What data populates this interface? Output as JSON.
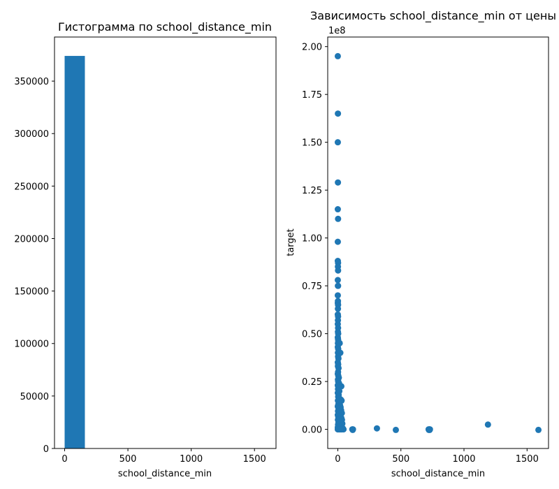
{
  "chart_data": [
    {
      "type": "bar",
      "title": "Гистограмма по school_distance_min",
      "xlabel": "school_distance_min",
      "ylabel": "",
      "xlim": [
        -80,
        1670
      ],
      "ylim": [
        0,
        392000
      ],
      "x_ticks": [
        0,
        500,
        1000,
        1500
      ],
      "y_ticks": [
        0,
        50000,
        100000,
        150000,
        200000,
        250000,
        300000,
        350000
      ],
      "bins": [
        {
          "x0": 0,
          "x1": 160,
          "count": 374000
        },
        {
          "x0": 160,
          "x1": 320,
          "count": 0
        },
        {
          "x0": 320,
          "x1": 480,
          "count": 0
        },
        {
          "x0": 480,
          "x1": 640,
          "count": 0
        },
        {
          "x0": 640,
          "x1": 800,
          "count": 0
        },
        {
          "x0": 800,
          "x1": 960,
          "count": 0
        },
        {
          "x0": 960,
          "x1": 1120,
          "count": 0
        },
        {
          "x0": 1120,
          "x1": 1280,
          "count": 0
        },
        {
          "x0": 1280,
          "x1": 1440,
          "count": 0
        },
        {
          "x0": 1440,
          "x1": 1600,
          "count": 0
        }
      ],
      "color": "#1f77b4"
    },
    {
      "type": "scatter",
      "title": "Зависимость school_distance_min от цены",
      "xlabel": "school_distance_min",
      "ylabel": "target",
      "y_offset_label": "1e8",
      "xlim": [
        -80,
        1670
      ],
      "ylim": [
        -0.1,
        2.05
      ],
      "x_ticks": [
        0,
        500,
        1000,
        1500
      ],
      "y_ticks": [
        "0.00",
        "0.25",
        "0.50",
        "0.75",
        "1.00",
        "1.25",
        "1.50",
        "1.75",
        "2.00"
      ],
      "color": "#1f77b4",
      "points": [
        [
          0,
          1.95
        ],
        [
          1,
          1.65
        ],
        [
          0,
          1.5
        ],
        [
          1,
          1.29
        ],
        [
          0,
          1.15
        ],
        [
          2,
          1.1
        ],
        [
          0,
          0.98
        ],
        [
          0,
          0.88
        ],
        [
          2,
          0.87
        ],
        [
          1,
          0.85
        ],
        [
          2,
          0.83
        ],
        [
          0,
          0.78
        ],
        [
          1,
          0.75
        ],
        [
          2,
          0.75
        ],
        [
          0,
          0.7
        ],
        [
          1,
          0.67
        ],
        [
          0,
          0.66
        ],
        [
          2,
          0.65
        ],
        [
          1,
          0.63
        ],
        [
          0,
          0.6
        ],
        [
          2,
          0.59
        ],
        [
          1,
          0.57
        ],
        [
          0,
          0.55
        ],
        [
          2,
          0.53
        ],
        [
          1,
          0.51
        ],
        [
          3,
          0.5
        ],
        [
          0,
          0.48
        ],
        [
          2,
          0.47
        ],
        [
          4,
          0.46
        ],
        [
          1,
          0.45
        ],
        [
          15,
          0.45
        ],
        [
          0,
          0.43
        ],
        [
          3,
          0.42
        ],
        [
          1,
          0.4
        ],
        [
          20,
          0.4
        ],
        [
          2,
          0.38
        ],
        [
          5,
          0.37
        ],
        [
          0,
          0.35
        ],
        [
          3,
          0.34
        ],
        [
          1,
          0.33
        ],
        [
          6,
          0.32
        ],
        [
          2,
          0.3
        ],
        [
          0,
          0.29
        ],
        [
          4,
          0.28
        ],
        [
          8,
          0.27
        ],
        [
          1,
          0.26
        ],
        [
          3,
          0.25
        ],
        [
          10,
          0.24
        ],
        [
          0,
          0.23
        ],
        [
          28,
          0.225
        ],
        [
          5,
          0.22
        ],
        [
          2,
          0.21
        ],
        [
          12,
          0.2
        ],
        [
          0,
          0.19
        ],
        [
          7,
          0.18
        ],
        [
          3,
          0.17
        ],
        [
          15,
          0.16
        ],
        [
          1,
          0.15
        ],
        [
          25,
          0.155
        ],
        [
          30,
          0.15
        ],
        [
          9,
          0.14
        ],
        [
          4,
          0.13
        ],
        [
          18,
          0.125
        ],
        [
          0,
          0.12
        ],
        [
          22,
          0.115
        ],
        [
          6,
          0.11
        ],
        [
          26,
          0.1
        ],
        [
          2,
          0.095
        ],
        [
          12,
          0.09
        ],
        [
          32,
          0.085
        ],
        [
          8,
          0.08
        ],
        [
          0,
          0.075
        ],
        [
          20,
          0.07
        ],
        [
          4,
          0.065
        ],
        [
          28,
          0.06
        ],
        [
          14,
          0.055
        ],
        [
          1,
          0.05
        ],
        [
          33,
          0.05
        ],
        [
          10,
          0.045
        ],
        [
          24,
          0.04
        ],
        [
          5,
          0.035
        ],
        [
          17,
          0.03
        ],
        [
          36,
          0.03
        ],
        [
          2,
          0.025
        ],
        [
          30,
          0.02
        ],
        [
          12,
          0.015
        ],
        [
          0,
          0.01
        ],
        [
          22,
          0.01
        ],
        [
          40,
          0.005
        ],
        [
          7,
          0.003
        ],
        [
          15,
          0.0
        ],
        [
          3,
          0.0
        ],
        [
          28,
          0.0
        ],
        [
          45,
          0.0
        ],
        [
          0,
          0.0
        ],
        [
          10,
          0.0
        ],
        [
          35,
          0.0
        ],
        [
          20,
          0.0
        ],
        [
          115,
          0.0
        ],
        [
          120,
          0.0
        ],
        [
          118,
          -0.003
        ],
        [
          310,
          0.005
        ],
        [
          460,
          -0.003
        ],
        [
          720,
          0.0
        ],
        [
          722,
          -0.003
        ],
        [
          725,
          0.0
        ],
        [
          728,
          -0.003
        ],
        [
          730,
          0.0
        ],
        [
          1190,
          0.025
        ],
        [
          1590,
          -0.003
        ]
      ]
    }
  ]
}
